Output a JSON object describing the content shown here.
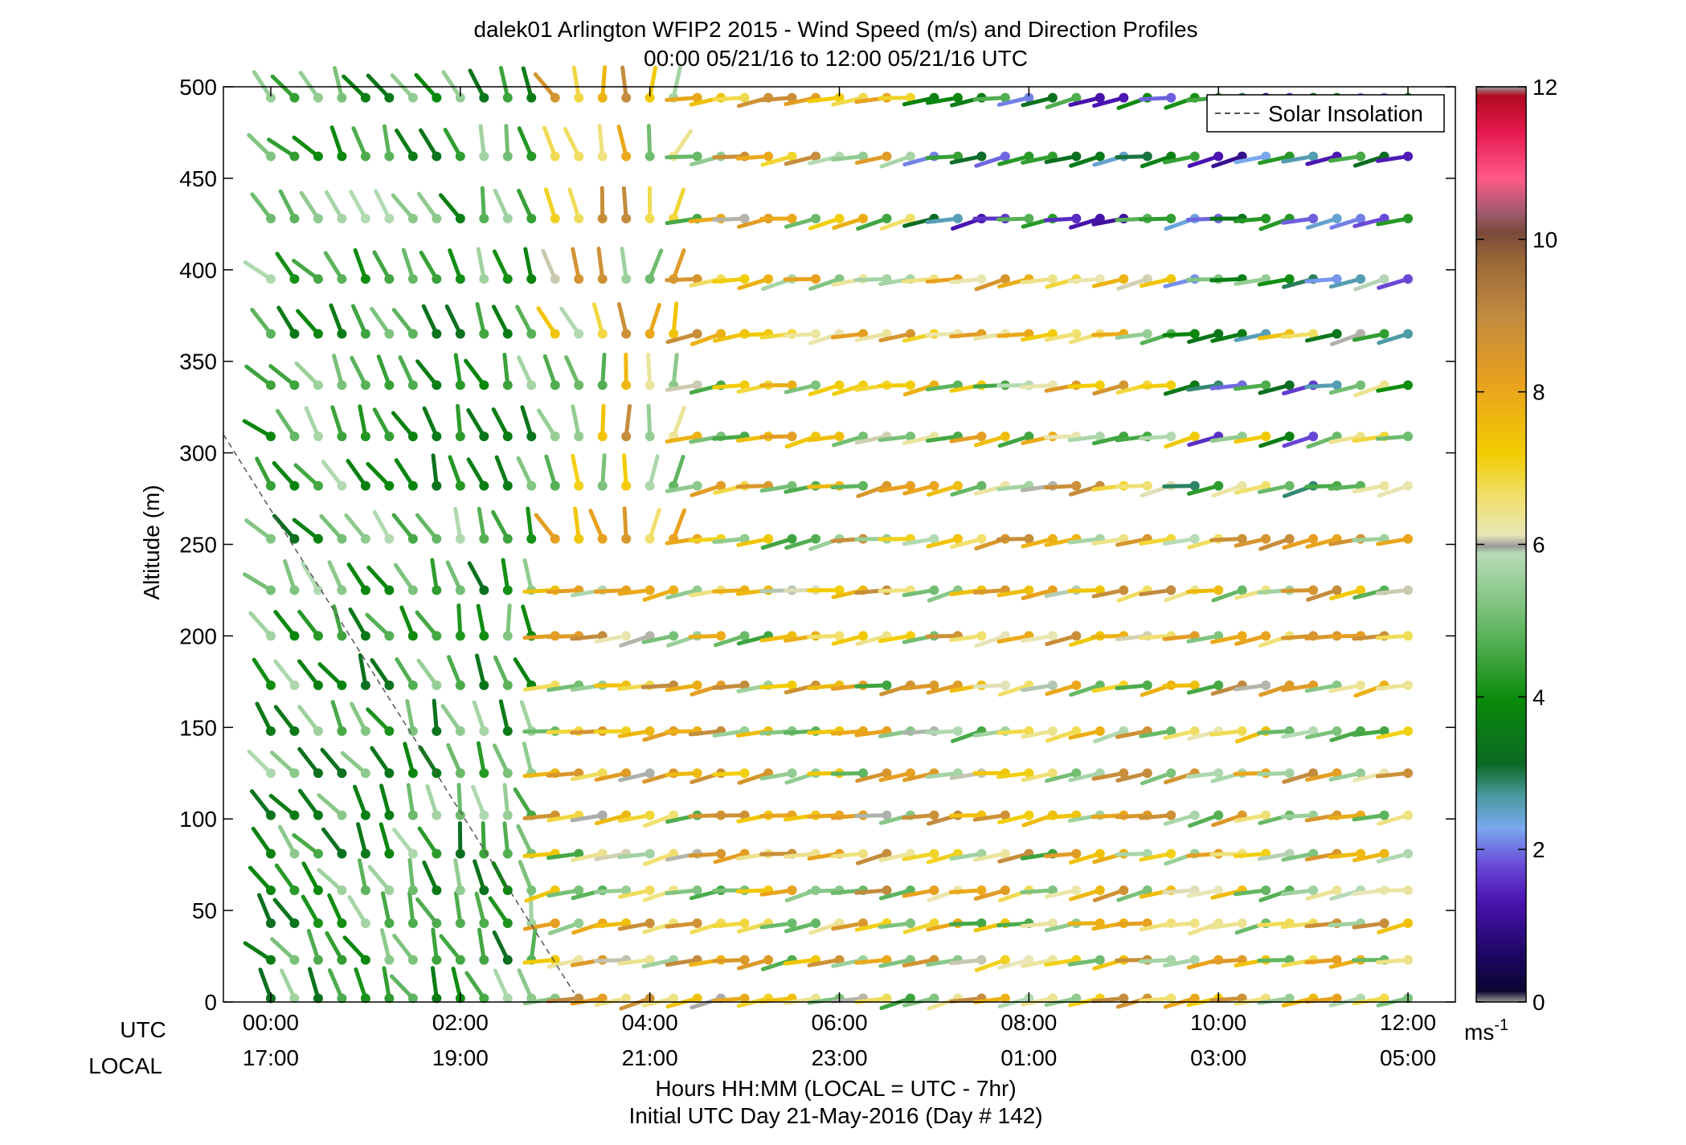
{
  "chart_data": {
    "type": "wind_barb_profile",
    "title": "dalek01 Arlington WFIP2 2015 - Wind Speed (m/s) and Direction Profiles",
    "subtitle": "00:00 05/21/16 to 12:00 05/21/16  UTC",
    "ylabel": "Altitude (m)",
    "ylim": [
      0,
      500
    ],
    "yticks": [
      0,
      50,
      100,
      150,
      200,
      250,
      300,
      350,
      400,
      450,
      500
    ],
    "xlim": [
      -0.5,
      12.5
    ],
    "xticks": [
      0,
      2,
      4,
      6,
      8,
      10,
      12
    ],
    "xtick_labels_utc": [
      "00:00",
      "02:00",
      "04:00",
      "06:00",
      "08:00",
      "10:00",
      "12:00"
    ],
    "xtick_labels_local": [
      "17:00",
      "19:00",
      "21:00",
      "23:00",
      "01:00",
      "03:00",
      "05:00"
    ],
    "row_label_utc": "UTC",
    "row_label_local": "LOCAL",
    "xlabel": "Hours HH:MM  (LOCAL = UTC - 7hr)",
    "xlabel2": "Initial UTC Day 21-May-2016 (Day # 142)",
    "legend": {
      "label": "Solar Insolation",
      "position": "top-right"
    },
    "colorbar": {
      "range": [
        0,
        12
      ],
      "ticks": [
        0,
        2,
        4,
        6,
        8,
        10,
        12
      ],
      "unit_base": "ms",
      "unit_exp": "-1"
    },
    "altitudes": [
      2,
      23,
      43,
      61,
      81,
      102,
      125,
      148,
      173,
      200,
      225,
      253,
      282,
      309,
      337,
      365,
      395,
      428,
      462,
      494
    ],
    "times": [
      0,
      0.25,
      0.5,
      0.75,
      1,
      1.25,
      1.5,
      1.75,
      2,
      2.25,
      2.5,
      2.75,
      3,
      3.25,
      3.5,
      3.75,
      4,
      4.25,
      4.5,
      4.75,
      5,
      5.25,
      5.5,
      5.75,
      6,
      6.25,
      6.5,
      6.75,
      7,
      7.25,
      7.5,
      7.75,
      8,
      8.25,
      8.5,
      8.75,
      9,
      9.25,
      9.5,
      9.75,
      10,
      10.25,
      10.5,
      10.75,
      11,
      11.25,
      11.5,
      11.75,
      12
    ],
    "solar_insolation": {
      "x": [
        -0.5,
        3.2
      ],
      "y": [
        310,
        5
      ]
    }
  }
}
